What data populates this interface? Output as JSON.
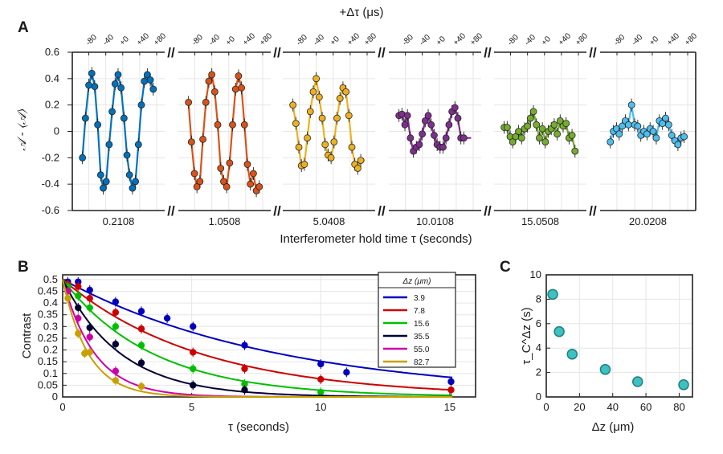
{
  "chart_data": [
    {
      "panel_label": "A",
      "type": "line",
      "top_axis_label": "+Δτ (μs)",
      "top_tick_labels": [
        "-80",
        "-40",
        "+0",
        "+40",
        "+80"
      ],
      "ylabel": "𝒜 - ⟨𝒜⟩",
      "xlabel": "Interferometer hold time τ (seconds)",
      "ylim": [
        -0.6,
        0.6
      ],
      "y_ticks": [
        -0.6,
        -0.4,
        -0.2,
        0,
        0.2,
        0.4,
        0.6
      ],
      "y_tick_labels": [
        "-0.6",
        "-0.4",
        "-0.2",
        "0",
        "0.2",
        "0.4",
        "0.6"
      ],
      "break_symbol": "//",
      "series": [
        {
          "name": "0.2108",
          "color": "#0072BD",
          "amplitude": 0.44,
          "points": [
            [
              -95,
              -0.2
            ],
            [
              -88,
              0.1
            ],
            [
              -80,
              0.35
            ],
            [
              -73,
              0.44
            ],
            [
              -66,
              0.34
            ],
            [
              -59,
              0.05
            ],
            [
              -52,
              -0.33
            ],
            [
              -46,
              -0.43
            ],
            [
              -39,
              -0.38
            ],
            [
              -32,
              -0.1
            ],
            [
              -25,
              0.15
            ],
            [
              -18,
              0.36
            ],
            [
              -11,
              0.43
            ],
            [
              -4,
              0.33
            ],
            [
              3,
              0.1
            ],
            [
              10,
              -0.18
            ],
            [
              16,
              -0.33
            ],
            [
              23,
              -0.43
            ],
            [
              30,
              -0.38
            ],
            [
              37,
              -0.1
            ],
            [
              44,
              0.2
            ],
            [
              51,
              0.38
            ],
            [
              58,
              0.43
            ],
            [
              65,
              0.39
            ],
            [
              72,
              0.32
            ]
          ]
        },
        {
          "name": "1.0508",
          "color": "#D95319",
          "amplitude": 0.42,
          "points": [
            [
              -95,
              0.22
            ],
            [
              -88,
              -0.08
            ],
            [
              -81,
              -0.32
            ],
            [
              -75,
              -0.42
            ],
            [
              -68,
              -0.38
            ],
            [
              -61,
              -0.06
            ],
            [
              -54,
              0.22
            ],
            [
              -47,
              0.38
            ],
            [
              -40,
              0.43
            ],
            [
              -33,
              0.3
            ],
            [
              -26,
              0.05
            ],
            [
              -19,
              -0.28
            ],
            [
              -12,
              -0.38
            ],
            [
              -5,
              -0.42
            ],
            [
              2,
              -0.24
            ],
            [
              9,
              0.05
            ],
            [
              16,
              0.32
            ],
            [
              23,
              0.42
            ],
            [
              30,
              0.33
            ],
            [
              37,
              0.05
            ],
            [
              44,
              -0.25
            ],
            [
              51,
              -0.4
            ],
            [
              58,
              -0.32
            ],
            [
              65,
              -0.45
            ],
            [
              72,
              -0.42
            ]
          ]
        },
        {
          "name": "5.0408",
          "color": "#EDB120",
          "amplitude": 0.32,
          "points": [
            [
              -95,
              0.2
            ],
            [
              -88,
              0.06
            ],
            [
              -81,
              -0.12
            ],
            [
              -75,
              -0.26
            ],
            [
              -68,
              -0.25
            ],
            [
              -61,
              -0.05
            ],
            [
              -54,
              0.15
            ],
            [
              -47,
              0.3
            ],
            [
              -40,
              0.4
            ],
            [
              -33,
              0.26
            ],
            [
              -26,
              0.1
            ],
            [
              -19,
              -0.1
            ],
            [
              -12,
              -0.18
            ],
            [
              -5,
              -0.2
            ],
            [
              2,
              -0.08
            ],
            [
              9,
              0.1
            ],
            [
              16,
              0.25
            ],
            [
              23,
              0.33
            ],
            [
              30,
              0.3
            ],
            [
              37,
              0.12
            ],
            [
              44,
              -0.12
            ],
            [
              51,
              -0.25
            ],
            [
              58,
              -0.28
            ],
            [
              65,
              -0.22
            ]
          ]
        },
        {
          "name": "10.0108",
          "color": "#7E2F8E",
          "amplitude": 0.14,
          "points": [
            [
              -95,
              0.12
            ],
            [
              -88,
              0.13
            ],
            [
              -81,
              0.05
            ],
            [
              -75,
              0.12
            ],
            [
              -68,
              -0.05
            ],
            [
              -61,
              -0.15
            ],
            [
              -54,
              -0.12
            ],
            [
              -47,
              -0.1
            ],
            [
              -40,
              -0.02
            ],
            [
              -33,
              0.08
            ],
            [
              -26,
              0.12
            ],
            [
              -19,
              0.05
            ],
            [
              -12,
              -0.03
            ],
            [
              -5,
              -0.1
            ],
            [
              2,
              -0.12
            ],
            [
              9,
              -0.12
            ],
            [
              16,
              -0.05
            ],
            [
              23,
              0.05
            ],
            [
              30,
              0.15
            ],
            [
              37,
              0.18
            ],
            [
              44,
              0.1
            ],
            [
              51,
              -0.05
            ],
            [
              58,
              -0.05
            ]
          ]
        },
        {
          "name": "15.0508",
          "color": "#77AC30",
          "amplitude": 0.05,
          "points": [
            [
              -95,
              0.03
            ],
            [
              -88,
              0.03
            ],
            [
              -81,
              -0.04
            ],
            [
              -75,
              -0.08
            ],
            [
              -68,
              -0.04
            ],
            [
              -61,
              0.0
            ],
            [
              -54,
              -0.05
            ],
            [
              -47,
              0.02
            ],
            [
              -40,
              0.04
            ],
            [
              -33,
              0.1
            ],
            [
              -26,
              0.15
            ],
            [
              -19,
              0.05
            ],
            [
              -12,
              -0.05
            ],
            [
              -5,
              0.02
            ],
            [
              2,
              -0.08
            ],
            [
              9,
              0.0
            ],
            [
              16,
              0.02
            ],
            [
              23,
              0.05
            ],
            [
              30,
              -0.02
            ],
            [
              37,
              0.08
            ],
            [
              44,
              0.04
            ],
            [
              51,
              0.06
            ],
            [
              58,
              -0.05
            ],
            [
              65,
              -0.03
            ],
            [
              72,
              -0.15
            ]
          ]
        },
        {
          "name": "20.0208",
          "color": "#4DBEEE",
          "amplitude": 0.04,
          "points": [
            [
              -95,
              -0.08
            ],
            [
              -88,
              0.0
            ],
            [
              -81,
              0.02
            ],
            [
              -75,
              -0.02
            ],
            [
              -68,
              0.04
            ],
            [
              -61,
              0.08
            ],
            [
              -54,
              0.05
            ],
            [
              -47,
              0.2
            ],
            [
              -40,
              0.05
            ],
            [
              -33,
              0.04
            ],
            [
              -26,
              -0.03
            ],
            [
              -19,
              0.0
            ],
            [
              -12,
              -0.02
            ],
            [
              -5,
              0.02
            ],
            [
              2,
              0.0
            ],
            [
              9,
              -0.05
            ],
            [
              16,
              0.08
            ],
            [
              23,
              0.06
            ],
            [
              30,
              0.1
            ],
            [
              37,
              0.05
            ],
            [
              44,
              -0.03
            ],
            [
              51,
              -0.07
            ],
            [
              58,
              -0.1
            ],
            [
              65,
              -0.05
            ],
            [
              72,
              -0.04
            ]
          ]
        }
      ]
    },
    {
      "panel_label": "B",
      "type": "line",
      "xlabel": "τ (seconds)",
      "ylabel": "Contrast",
      "xlim": [
        0,
        16
      ],
      "ylim": [
        0,
        0.52
      ],
      "x_ticks": [
        0,
        5,
        10,
        15
      ],
      "x_tick_labels": [
        "0",
        "5",
        "10",
        "15"
      ],
      "y_ticks": [
        0,
        0.05,
        0.1,
        0.15,
        0.2,
        0.25,
        0.3,
        0.35,
        0.4,
        0.45,
        0.5
      ],
      "y_tick_labels": [
        "0",
        "0.05",
        "0.1",
        "0.15",
        "0.2",
        "0.25",
        "0.3",
        "0.35",
        "0.4",
        "0.45",
        "0.5"
      ],
      "legend_title": "Δz (μm)",
      "legend_position": "top-right",
      "series": [
        {
          "name": "3.9",
          "color": "#0000BF",
          "tau": 8.4,
          "x": [
            0.2,
            0.6,
            1.05,
            2.05,
            3.05,
            4.05,
            5.05,
            7.05,
            10.0,
            11.0,
            15.05
          ],
          "y": [
            0.49,
            0.49,
            0.455,
            0.405,
            0.365,
            0.335,
            0.3,
            0.22,
            0.14,
            0.105,
            0.065
          ]
        },
        {
          "name": "7.8",
          "color": "#CC0000",
          "tau": 5.35,
          "x": [
            0.2,
            0.6,
            1.05,
            2.05,
            3.05,
            5.05,
            7.05,
            10.0,
            15.05
          ],
          "y": [
            0.48,
            0.47,
            0.42,
            0.36,
            0.29,
            0.19,
            0.12,
            0.075,
            0.03
          ]
        },
        {
          "name": "15.6",
          "color": "#00BF00",
          "tau": 3.5,
          "x": [
            0.2,
            0.6,
            1.05,
            2.05,
            3.05,
            5.05,
            7.05,
            10.0
          ],
          "y": [
            0.47,
            0.43,
            0.38,
            0.3,
            0.22,
            0.12,
            0.055,
            0.02
          ]
        },
        {
          "name": "35.5",
          "color": "#000033",
          "tau": 2.25,
          "x": [
            0.2,
            0.6,
            1.05,
            2.05,
            3.05,
            5.05,
            7.05
          ],
          "y": [
            0.45,
            0.38,
            0.295,
            0.225,
            0.145,
            0.05,
            0.03
          ]
        },
        {
          "name": "55.0",
          "color": "#CC00AA",
          "tau": 1.25,
          "x": [
            0.2,
            0.6,
            1.05,
            2.05
          ],
          "y": [
            0.45,
            0.335,
            0.255,
            0.11
          ]
        },
        {
          "name": "82.7",
          "color": "#C8A000",
          "tau": 1.0,
          "x": [
            0.2,
            0.6,
            0.85,
            1.05,
            2.05,
            3.05
          ],
          "y": [
            0.42,
            0.27,
            0.185,
            0.19,
            0.07,
            0.045
          ]
        }
      ]
    },
    {
      "panel_label": "C",
      "type": "scatter",
      "xlabel": "Δz (μm)",
      "ylabel": "τ_C^Δz (s)",
      "xlim": [
        0,
        88
      ],
      "ylim": [
        0,
        10
      ],
      "x_ticks": [
        0,
        20,
        40,
        60,
        80
      ],
      "x_tick_labels": [
        "0",
        "20",
        "40",
        "60",
        "80"
      ],
      "y_ticks": [
        0,
        2,
        4,
        6,
        8,
        10
      ],
      "y_tick_labels": [
        "0",
        "2",
        "4",
        "6",
        "8",
        "10"
      ],
      "color": "#3EC1C1",
      "x": [
        3.9,
        7.8,
        15.6,
        35.5,
        55.0,
        82.7
      ],
      "y": [
        8.4,
        5.35,
        3.5,
        2.25,
        1.25,
        1.0
      ]
    }
  ]
}
